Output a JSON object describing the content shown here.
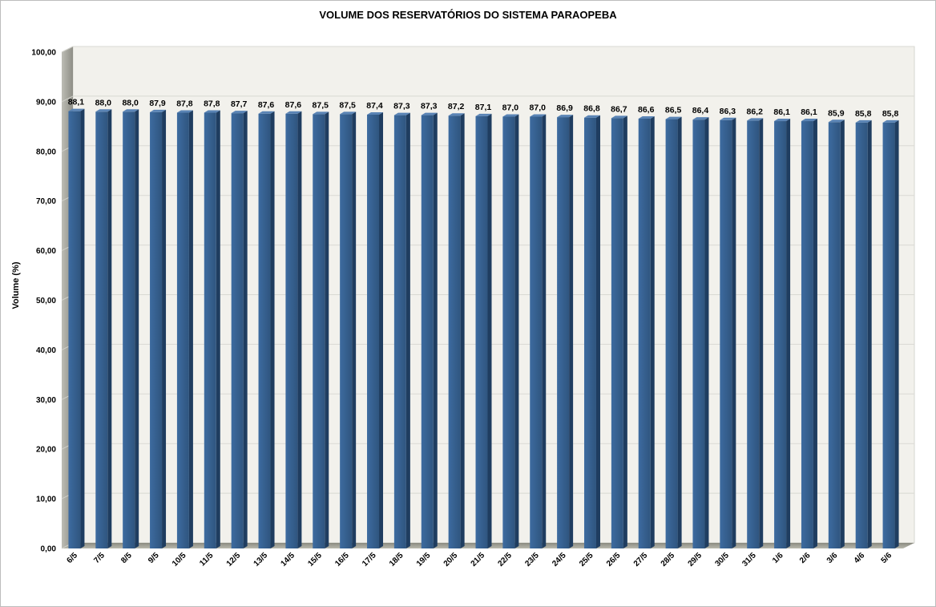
{
  "chart_data": {
    "type": "bar",
    "title": "VOLUME DOS RESERVATÓRIOS DO SISTEMA PARAOPEBA",
    "ylabel": "Volume (%)",
    "xlabel": "",
    "ylim": [
      0,
      100
    ],
    "y_ticks": [
      "0,00",
      "10,00",
      "20,00",
      "30,00",
      "40,00",
      "50,00",
      "60,00",
      "70,00",
      "80,00",
      "90,00",
      "100,00"
    ],
    "grid": true,
    "legend": "none",
    "bar_color": "#36608f",
    "categories": [
      "6/5",
      "7/5",
      "8/5",
      "9/5",
      "10/5",
      "11/5",
      "12/5",
      "13/5",
      "14/5",
      "15/5",
      "16/5",
      "17/5",
      "18/5",
      "19/5",
      "20/5",
      "21/5",
      "22/5",
      "23/5",
      "24/5",
      "25/5",
      "26/5",
      "27/5",
      "28/5",
      "29/5",
      "30/5",
      "31/5",
      "1/6",
      "2/6",
      "3/6",
      "4/6",
      "5/6"
    ],
    "values": [
      88.1,
      88.0,
      88.0,
      87.9,
      87.8,
      87.8,
      87.7,
      87.6,
      87.6,
      87.5,
      87.5,
      87.4,
      87.3,
      87.3,
      87.2,
      87.1,
      87.0,
      87.0,
      86.9,
      86.8,
      86.7,
      86.6,
      86.5,
      86.4,
      86.3,
      86.2,
      86.1,
      86.1,
      85.9,
      85.8,
      85.8
    ],
    "data_labels": [
      "88,1",
      "88,0",
      "88,0",
      "87,9",
      "87,8",
      "87,8",
      "87,7",
      "87,6",
      "87,6",
      "87,5",
      "87,5",
      "87,4",
      "87,3",
      "87,3",
      "87,2",
      "87,1",
      "87,0",
      "87,0",
      "86,9",
      "86,8",
      "86,7",
      "86,6",
      "86,5",
      "86,4",
      "86,3",
      "86,2",
      "86,1",
      "86,1",
      "85,9",
      "85,8",
      "85,8"
    ]
  }
}
